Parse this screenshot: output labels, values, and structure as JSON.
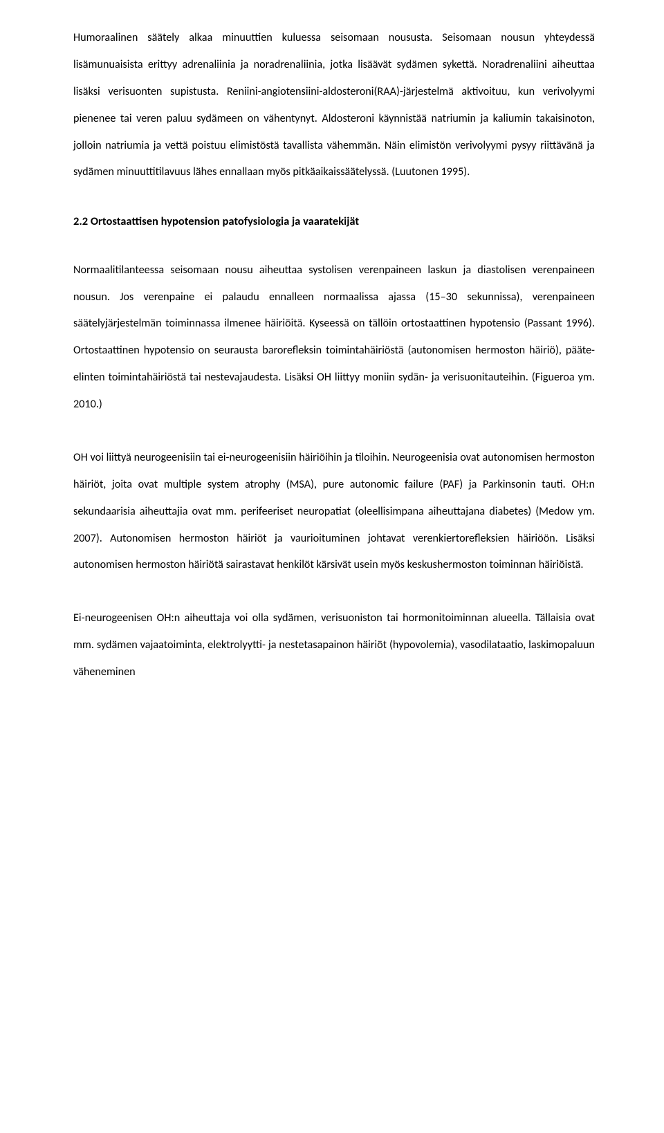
{
  "document": {
    "paragraphs": {
      "p1": "Humoraalinen säätely alkaa minuuttien kuluessa seisomaan noususta. Seisomaan nousun yhteydessä lisämunuaisista erittyy adrenaliinia ja noradrenaliinia, jotka lisäävät sydämen sykettä. Noradrenaliini aiheuttaa lisäksi verisuonten supistusta. Reniini-angiotensiini-aldosteroni(RAA)-järjestelmä aktivoituu, kun verivolyymi pienenee tai veren paluu sydämeen on vähentynyt. Aldosteroni käynnistää natriumin ja kaliumin takaisinoton, jolloin natriumia ja vettä poistuu elimistöstä tavallista vähemmän. Näin elimistön verivolyymi pysyy riittävänä ja sydämen minuuttitilavuus lähes ennallaan myös pitkäaikaissäätelyssä. (Luutonen 1995).",
      "p2": "Normaalitilanteessa seisomaan nousu aiheuttaa systolisen verenpaineen laskun ja diastolisen verenpaineen nousun. Jos verenpaine ei palaudu ennalleen normaalissa ajassa (15–30 sekunnissa), verenpaineen säätelyjärjestelmän toiminnassa ilmenee häiriöitä. Kyseessä on tällöin ortostaattinen hypotensio (Passant 1996). Ortostaattinen hypotensio on seurausta barorefleksin toimintahäiriöstä (autonomisen hermoston häiriö), pääte-elinten toimintahäiriöstä tai nestevajaudesta. Lisäksi OH liittyy moniin sydän- ja verisuonitauteihin. (Figueroa ym. 2010.)",
      "p3": "OH voi liittyä neurogeenisiin tai ei-neurogeenisiin häiriöihin ja tiloihin. Neurogeenisia ovat autonomisen hermoston häiriöt, joita ovat multiple system atrophy (MSA), pure autonomic failure (PAF) ja Parkinsonin tauti. OH:n sekundaarisia aiheuttajia ovat mm. perifeeriset neuropatiat (oleellisimpana aiheuttajana diabetes) (Medow ym. 2007). Autonomisen hermoston häiriöt ja vaurioituminen johtavat verenkiertorefleksien häiriöön. Lisäksi autonomisen hermoston häiriötä sairastavat henkilöt kärsivät usein myös keskushermoston toiminnan häiriöistä.",
      "p4": "Ei-neurogeenisen OH:n aiheuttaja voi olla sydämen, verisuoniston tai hormonitoiminnan alueella. Tällaisia ovat mm. sydämen vajaatoiminta, elektrolyytti- ja nestetasapainon häiriöt (hypovolemia), vasodilataatio, laskimopaluun väheneminen"
    },
    "heading": "2.2 Ortostaattisen hypotension patofysiologia ja vaaratekijät"
  }
}
